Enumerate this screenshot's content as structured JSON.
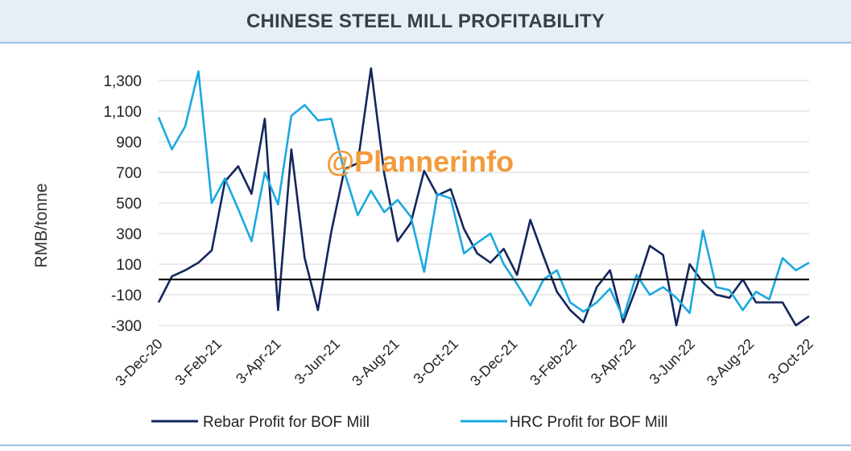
{
  "chart_data": {
    "type": "line",
    "title": "CHINESE STEEL MILL PROFITABILITY",
    "ylabel": "RMB/tonne",
    "xlabel": "",
    "ylim": [
      -300,
      1400
    ],
    "yticks": [
      1300,
      1100,
      900,
      700,
      500,
      300,
      100,
      -100,
      -300
    ],
    "ytick_labels": [
      "1,300",
      "1,100",
      "900",
      "700",
      "500",
      "300",
      "100",
      "-100",
      "-300"
    ],
    "zero_line": true,
    "grid": "horizontal",
    "legend_position": "bottom",
    "x_tick_labels": [
      "3-Dec-20",
      "3-Feb-21",
      "3-Apr-21",
      "3-Jun-21",
      "3-Aug-21",
      "3-Oct-21",
      "3-Dec-21",
      "3-Feb-22",
      "3-Apr-22",
      "3-Jun-22",
      "3-Aug-22",
      "3-Oct-22"
    ],
    "x": [
      "3-Dec-20",
      "17-Dec-20",
      "31-Dec-20",
      "14-Jan-21",
      "28-Jan-21",
      "11-Feb-21",
      "25-Feb-21",
      "11-Mar-21",
      "25-Mar-21",
      "8-Apr-21",
      "22-Apr-21",
      "6-May-21",
      "20-May-21",
      "3-Jun-21",
      "17-Jun-21",
      "1-Jul-21",
      "15-Jul-21",
      "29-Jul-21",
      "12-Aug-21",
      "26-Aug-21",
      "9-Sep-21",
      "23-Sep-21",
      "7-Oct-21",
      "21-Oct-21",
      "4-Nov-21",
      "18-Nov-21",
      "2-Dec-21",
      "16-Dec-21",
      "30-Dec-21",
      "13-Jan-22",
      "27-Jan-22",
      "10-Feb-22",
      "24-Feb-22",
      "10-Mar-22",
      "24-Mar-22",
      "7-Apr-22",
      "21-Apr-22",
      "5-May-22",
      "19-May-22",
      "2-Jun-22",
      "16-Jun-22",
      "30-Jun-22",
      "14-Jul-22",
      "28-Jul-22",
      "11-Aug-22",
      "25-Aug-22",
      "8-Sep-22",
      "22-Sep-22",
      "6-Oct-22",
      "20-Oct-22"
    ],
    "series": [
      {
        "name": "Rebar Profit for BOF Mill",
        "color": "#14265c",
        "values": [
          -150,
          20,
          60,
          110,
          190,
          640,
          740,
          560,
          1050,
          -200,
          850,
          140,
          -200,
          310,
          720,
          760,
          1380,
          690,
          250,
          370,
          710,
          550,
          590,
          330,
          170,
          110,
          200,
          30,
          390,
          150,
          -80,
          -200,
          -280,
          -50,
          60,
          -280,
          -50,
          220,
          160,
          -300,
          100,
          -20,
          -100,
          -120,
          0,
          -150,
          -150,
          -150,
          -300,
          -240
        ]
      },
      {
        "name": "HRC Profit for BOF Mill",
        "color": "#19a9e0",
        "values": [
          1060,
          850,
          1000,
          1360,
          500,
          660,
          460,
          250,
          700,
          490,
          1070,
          1140,
          1040,
          1050,
          700,
          420,
          580,
          440,
          520,
          410,
          50,
          560,
          530,
          170,
          240,
          300,
          100,
          -30,
          -170,
          0,
          60,
          -150,
          -210,
          -150,
          -60,
          -250,
          30,
          -100,
          -50,
          -120,
          -220,
          320,
          -50,
          -70,
          -200,
          -80,
          -130,
          140,
          60,
          110
        ]
      }
    ],
    "watermark": "@Plannerinfo"
  }
}
